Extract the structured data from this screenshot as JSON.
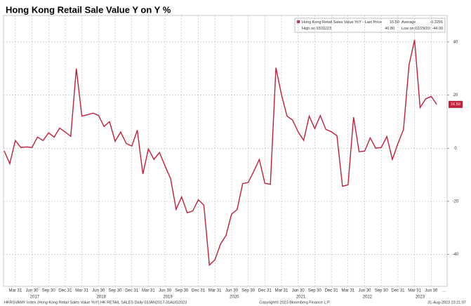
{
  "chart_data": {
    "type": "line",
    "title": "Hong Kong Retail Sale Value Y on Y %",
    "categories": [
      null,
      null,
      "Mar 31",
      null,
      null,
      "Jun 30",
      null,
      null,
      "Sep 30",
      null,
      null,
      "Dec 31",
      null,
      null,
      "Mar 31",
      null,
      null,
      "Jun 30",
      null,
      null,
      "Sep 30",
      null,
      null,
      "Dec 31",
      null,
      null,
      "Mar 31",
      null,
      null,
      "Jun 30",
      null,
      null,
      "Sep 30",
      null,
      null,
      "Dec 31",
      null,
      null,
      "Mar 31",
      null,
      null,
      "Jun 30",
      null,
      null,
      "Sep 30",
      null,
      null,
      "Dec 31",
      null,
      null,
      "Mar 31",
      null,
      null,
      "Jun 30",
      null,
      null,
      "Sep 30",
      null,
      null,
      "Dec 31",
      null,
      null,
      "Mar 31",
      null,
      null,
      "Jun 30",
      null,
      null,
      "Sep 30",
      null,
      null,
      "Dec 31",
      null,
      null,
      "Mar 31",
      null,
      null,
      "Jun 30",
      null
    ],
    "years": [
      "2017",
      "2018",
      "2019",
      "2020",
      "2021",
      "2022",
      "2023"
    ],
    "axis_more": "...",
    "series": [
      {
        "name": "Hong Kong Retail Sales Value YoY - Last Price",
        "color": "#c0203a",
        "values": [
          -1,
          -5.8,
          2.9,
          0.3,
          0.5,
          0.3,
          4.2,
          2.9,
          5.8,
          4.2,
          7.6,
          6.1,
          4.5,
          30,
          12.1,
          12.6,
          13.2,
          12.4,
          8.2,
          10,
          2.6,
          6.1,
          1.8,
          0.8,
          6.8,
          -9.7,
          -0.3,
          -4.2,
          -1.6,
          -6.7,
          -11.4,
          -23,
          -18.3,
          -24.3,
          -23.6,
          -19.4,
          -21.4,
          -44,
          -42,
          -36.1,
          -32.8,
          -24.8,
          -23.1,
          -13.3,
          -12.9,
          -8.7,
          -4.2,
          -13.2,
          -13.6,
          30.3,
          20.1,
          12.1,
          10.6,
          6.2,
          3,
          12.1,
          7.4,
          12.3,
          7.1,
          6.2,
          4.7,
          -14.3,
          -13.8,
          11.7,
          -1.3,
          -1.1,
          3.9,
          0,
          0.3,
          4.4,
          -4.2,
          1.8,
          7,
          31.3,
          40.8,
          15.3,
          18.6,
          19.5,
          16.5
        ]
      }
    ],
    "ylim": [
      -52,
      50
    ],
    "yticks": [
      -40,
      -20,
      0,
      20,
      40
    ],
    "grid": true,
    "legend": {
      "last_price": {
        "value": 16.5,
        "label": "16.50"
      },
      "high_label": "High on 03/31/23",
      "high": {
        "value": 40.8,
        "label": "40.80"
      },
      "average_label": "Average",
      "average": -0.3291,
      "low_label": "Low on 02/29/20",
      "low": {
        "value": -44,
        "label": "-44.00"
      }
    },
    "footer": {
      "left": "HKRSVAMY Index (Hong Kong Retail Sales Value YoY) HK RETAIL SALES  Daily 03JAN2017-31AUG2023",
      "center": "Copyright© 2023 Bloomberg Finance L.P.",
      "right": "31-Aug-2023 23:21:07"
    }
  }
}
